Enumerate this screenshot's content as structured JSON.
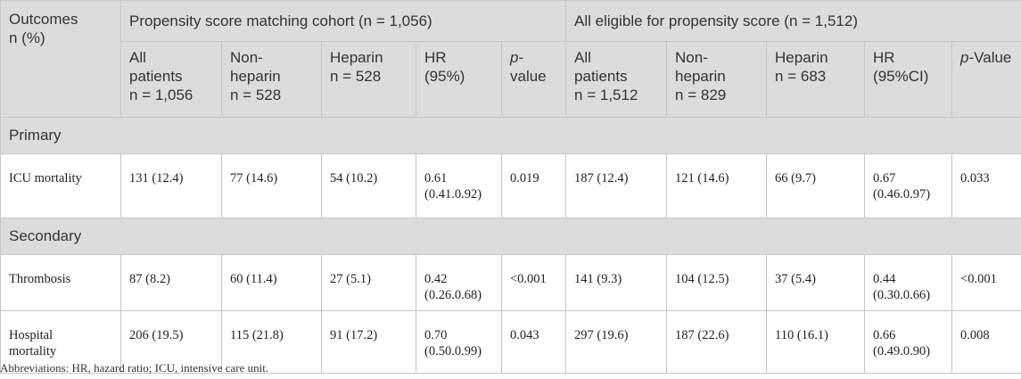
{
  "table": {
    "outcomes_header": [
      "Outcomes",
      "n (%)"
    ],
    "group1_label": "Propensity score matching cohort (n = 1,056)",
    "group2_label": "All eligible for propensity score (n = 1,512)",
    "subheaders": {
      "g1_all": [
        "All",
        "patients",
        "n = 1,056"
      ],
      "g1_nonhep": [
        "Non-",
        "heparin",
        "n = 528"
      ],
      "g1_hep": [
        "Heparin",
        "n = 528"
      ],
      "g1_hr": [
        "HR",
        "(95%)"
      ],
      "g1_p_italic": "p",
      "g1_p_rest": "-",
      "g1_p_line2": "value",
      "g2_all": [
        "All",
        "patients",
        "n = 1,512"
      ],
      "g2_nonhep": [
        "Non-",
        "heparin",
        "n = 829"
      ],
      "g2_hep": [
        "Heparin",
        "n = 683"
      ],
      "g2_hr": [
        "HR",
        "(95%CI)"
      ],
      "g2_p_italic": "p",
      "g2_p_rest": "-Value"
    },
    "sections": {
      "primary": "Primary",
      "secondary": "Secondary"
    },
    "rows": {
      "icu": {
        "label": "ICU mortality",
        "cells": [
          "131 (12.4)",
          "77 (14.6)",
          "54 (10.2)",
          "0.61",
          "(0.41.0.92)",
          "0.019",
          "187 (12.4)",
          "121 (14.6)",
          "66 (9.7)",
          "0.67",
          "(0.46.0.97)",
          "0.033"
        ]
      },
      "thrombosis": {
        "label": "Thrombosis",
        "cells": [
          "87 (8.2)",
          "60 (11.4)",
          "27 (5.1)",
          "0.42",
          "(0.26.0.68)",
          "<0.001",
          "141 (9.3)",
          "104 (12.5)",
          "37 (5.4)",
          "0.44",
          "(0.30.0.66)",
          "<0.001"
        ]
      },
      "hospital": {
        "label": [
          "Hospital",
          "mortality"
        ],
        "cells": [
          "206 (19.5)",
          "115 (21.8)",
          "91 (17.2)",
          "0.70",
          "(0.50.0.99)",
          "0.043",
          "297 (19.6)",
          "187 (22.6)",
          "110 (16.1)",
          "0.66",
          "(0.49.0.90)",
          "0.008"
        ]
      }
    }
  },
  "footnote": "Abbreviations: HR, hazard ratio; ICU, intensive care unit."
}
